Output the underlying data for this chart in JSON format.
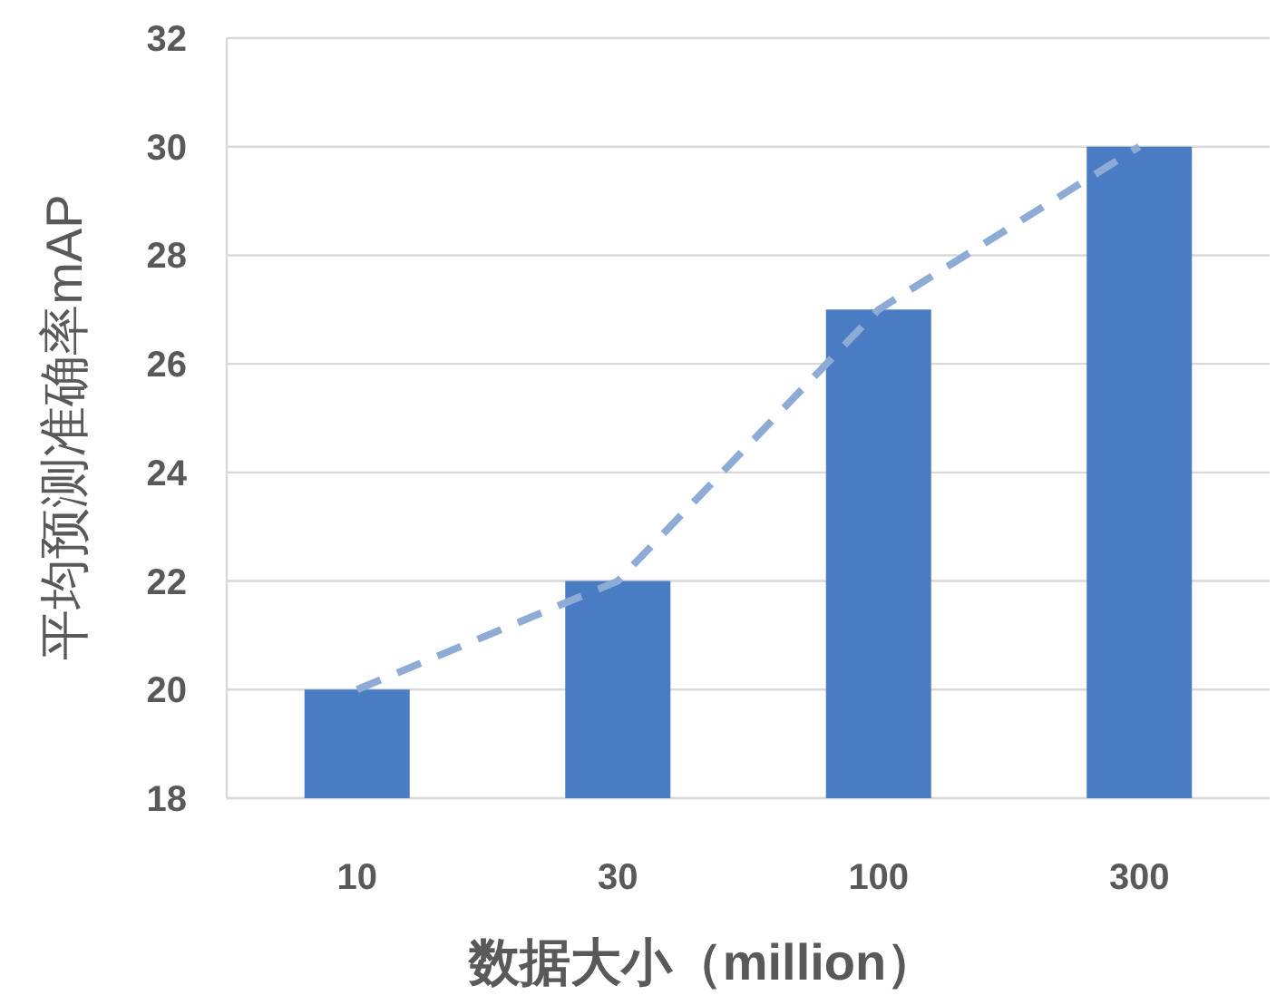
{
  "chart_data": {
    "type": "bar",
    "xlabel": "数据大小（million）",
    "ylabel": "平均预测准确率mAP",
    "categories": [
      "10",
      "30",
      "100",
      "300"
    ],
    "series": [
      {
        "color": "#4a7cc4",
        "values": [
          20,
          22,
          27,
          30
        ]
      },
      {
        "type": "line",
        "color": "#8eabd6",
        "values": [
          20,
          22,
          27,
          30
        ],
        "line_style": "dashed",
        "marker": "none"
      }
    ],
    "ylim": [
      18,
      32
    ],
    "yticks": [
      18,
      20,
      22,
      24,
      26,
      28,
      30,
      32
    ],
    "grid": "y"
  }
}
